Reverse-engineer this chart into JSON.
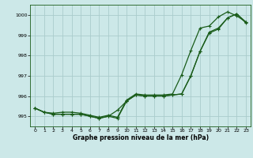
{
  "xlabel": "Graphe pression niveau de la mer (hPa)",
  "ylim": [
    994.5,
    1000.5
  ],
  "xlim": [
    -0.5,
    23.5
  ],
  "yticks": [
    995,
    996,
    997,
    998,
    999,
    1000
  ],
  "xticks": [
    0,
    1,
    2,
    3,
    4,
    5,
    6,
    7,
    8,
    9,
    10,
    11,
    12,
    13,
    14,
    15,
    16,
    17,
    18,
    19,
    20,
    21,
    22,
    23
  ],
  "bg_color": "#cce8e8",
  "grid_color": "#aacccc",
  "line_color": "#1a5c1a",
  "series": [
    [
      995.4,
      995.2,
      995.1,
      995.1,
      995.1,
      995.1,
      995.0,
      994.9,
      995.0,
      995.3,
      995.75,
      996.05,
      996.0,
      996.0,
      996.0,
      996.05,
      996.1,
      997.0,
      998.2,
      999.1,
      999.3,
      999.85,
      1000.05,
      999.6
    ],
    [
      995.4,
      995.2,
      995.1,
      995.1,
      995.1,
      995.1,
      995.0,
      994.9,
      995.0,
      994.9,
      995.75,
      996.05,
      996.0,
      996.0,
      996.0,
      996.05,
      996.1,
      997.0,
      998.2,
      999.15,
      999.35,
      999.85,
      1000.05,
      999.65
    ],
    [
      995.4,
      995.2,
      995.15,
      995.2,
      995.2,
      995.15,
      995.05,
      994.95,
      995.05,
      994.95,
      995.8,
      996.1,
      996.05,
      996.05,
      996.05,
      996.1,
      997.05,
      998.25,
      999.35,
      999.45,
      999.9,
      1000.15,
      999.95,
      999.65
    ]
  ]
}
